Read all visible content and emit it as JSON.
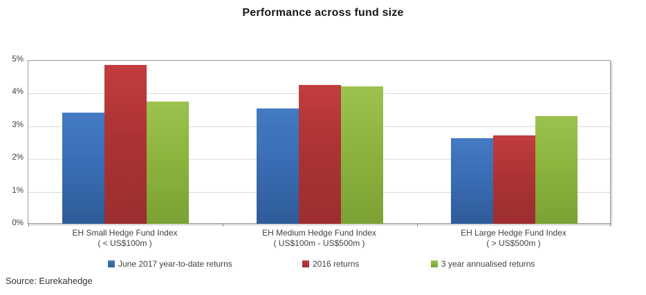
{
  "title": "Performance across fund size",
  "source": "Source: Eurekahedge",
  "chart_data": {
    "type": "bar",
    "title": "Performance across fund size",
    "categories": [
      {
        "line1": "EH Small Hedge Fund Index",
        "line2": "( < US$100m )"
      },
      {
        "line1": "EH Medium Hedge Fund Index",
        "line2": "( US$100m - US$500m )"
      },
      {
        "line1": "EH Large Hedge Fund Index",
        "line2": "( > US$500m )"
      }
    ],
    "series": [
      {
        "name": "June 2017 year-to-date returns",
        "color": "#3A6DB5",
        "color_light": "#447BC2",
        "color_dark": "#2F5C99",
        "values": [
          3.4,
          3.52,
          2.62
        ]
      },
      {
        "name": "2016 returns",
        "color": "#AC3334",
        "color_light": "#C23D3E",
        "color_dark": "#9C2E2F",
        "values": [
          4.86,
          4.23,
          2.7
        ]
      },
      {
        "name": "3 year annualised returns",
        "color": "#8DB43E",
        "color_light": "#9CC24F",
        "color_dark": "#7CA135",
        "values": [
          3.74,
          4.2,
          3.3
        ]
      }
    ],
    "ylabel": "",
    "xlabel": "",
    "ylim": [
      0,
      5
    ],
    "ytick_step": 1,
    "ytick_labels": [
      "0%",
      "1%",
      "2%",
      "3%",
      "4%",
      "5%"
    ],
    "grid": true,
    "legend_position": "bottom"
  }
}
